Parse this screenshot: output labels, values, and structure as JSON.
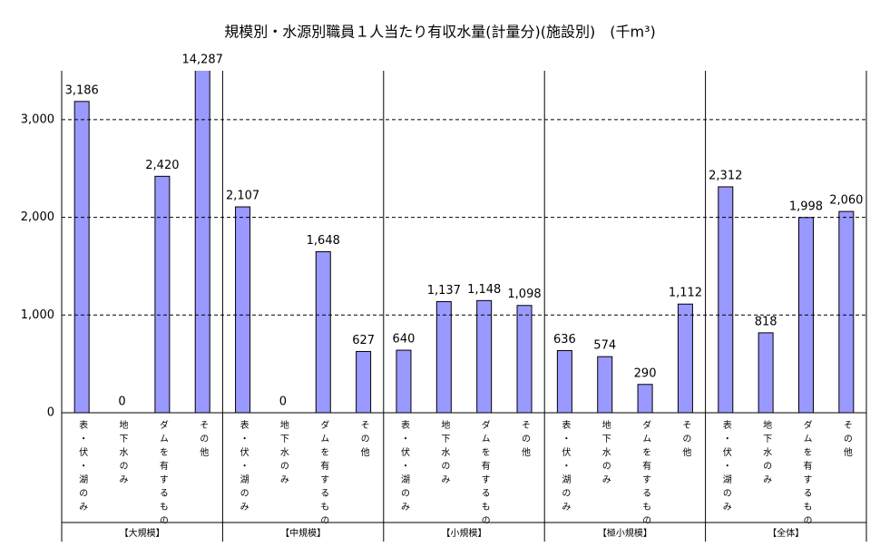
{
  "chart_data": {
    "type": "bar",
    "title": "規模別・水源別職員１人当たり有収水量(計量分)(施設別)　(千m³)",
    "groups": [
      "【大規模】",
      "【中規模】",
      "【小規模】",
      "【極小規模】",
      "【全体】"
    ],
    "categories": [
      "表・伏・湖のみ",
      "地下水のみ",
      "ダムを有するもの",
      "その他",
      "表・伏・湖のみ",
      "地下水のみ",
      "ダムを有するもの",
      "その他",
      "表・伏・湖のみ",
      "地下水のみ",
      "ダムを有するもの",
      "その他",
      "表・伏・湖のみ",
      "地下水のみ",
      "ダムを有するもの",
      "その他",
      "表・伏・湖のみ",
      "地下水のみ",
      "ダムを有するもの",
      "その他"
    ],
    "values": [
      3186,
      0,
      2420,
      14287,
      2107,
      0,
      1648,
      627,
      640,
      1137,
      1148,
      1098,
      636,
      574,
      290,
      1112,
      2312,
      818,
      1998,
      2060
    ],
    "value_labels": [
      "3,186",
      "0",
      "2,420",
      "14,287",
      "2,107",
      "0",
      "1,648",
      "627",
      "640",
      "1,137",
      "1,148",
      "1,098",
      "636",
      "574",
      "290",
      "1,112",
      "2,312",
      "818",
      "1,998",
      "2,060"
    ],
    "color": "#9999ff",
    "ylim": [
      0,
      3500
    ],
    "yticks": [
      0,
      {
        "value": 1000,
        "label": "1,000"
      },
      {
        "value": 2000,
        "label": "2,000"
      },
      {
        "value": 3000,
        "label": "3,000"
      }
    ],
    "grid": true
  }
}
